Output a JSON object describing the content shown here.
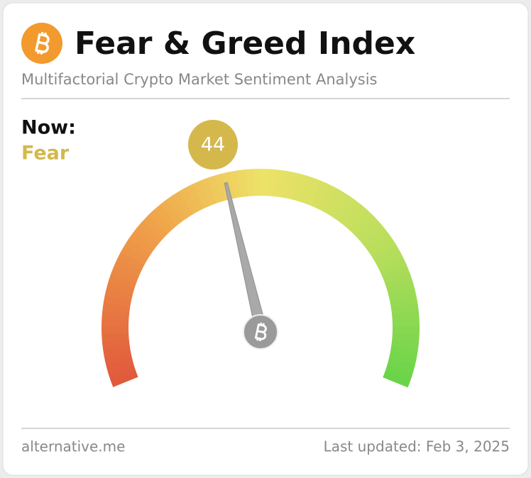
{
  "chart_data": {
    "type": "gauge",
    "title": "Fear & Greed Index",
    "subtitle": "Multifactorial Crypto Market Sentiment Analysis",
    "now_label": "Now:",
    "classification": "Fear",
    "value": 44,
    "color": "#d4b84c",
    "ylim": [
      0,
      100
    ],
    "source": "alternative.me",
    "updated": "Last updated: Feb 3, 2025"
  }
}
